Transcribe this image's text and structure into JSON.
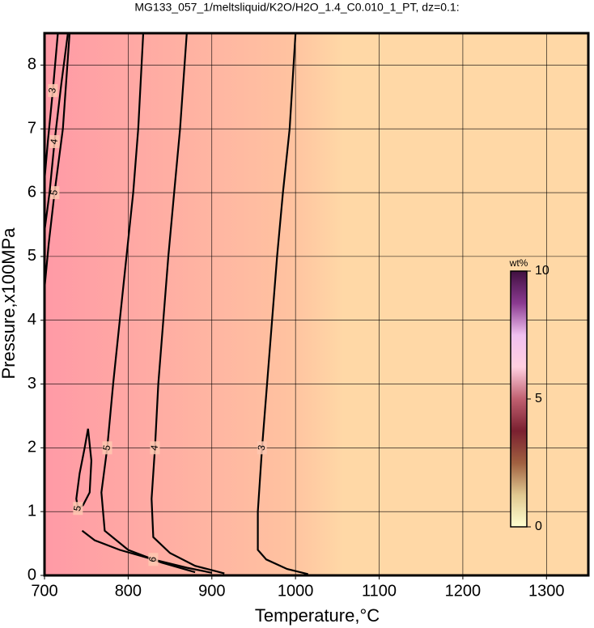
{
  "chart_data": {
    "type": "contour",
    "title": "MG133_057_1/meltsliquid/K2O/H2O_1.4_C0.010_1_PT, dz=0.1:",
    "x_label": "Temperature,°C",
    "y_label": "Pressure,x100MPa",
    "xlim": [
      700,
      1350
    ],
    "ylim": [
      0,
      8.5
    ],
    "xticks": [
      700,
      800,
      900,
      1000,
      1100,
      1200,
      1300
    ],
    "yticks": [
      0,
      1,
      2,
      3,
      4,
      5,
      6,
      7,
      8
    ],
    "grid": true,
    "contours": [
      {
        "level": 3,
        "x": [
          1000,
          993,
          985,
          978,
          972,
          966,
          960,
          955,
          955,
          965,
          990,
          1015
        ],
        "y": [
          8.5,
          7,
          6,
          5,
          4,
          3,
          2,
          1,
          0.4,
          0.25,
          0.1,
          0.02
        ]
      },
      {
        "level": 4,
        "x": [
          870,
          862,
          855,
          848,
          842,
          836,
          832,
          828,
          830,
          850,
          880,
          915
        ],
        "y": [
          8.5,
          7,
          6,
          5,
          4,
          3,
          2,
          1.2,
          0.6,
          0.35,
          0.15,
          0.03
        ]
      },
      {
        "level": 5,
        "x": [
          818,
          812,
          806,
          798,
          790,
          782,
          775,
          768,
          772,
          800,
          840,
          880
        ],
        "y": [
          8.5,
          7,
          6,
          5,
          4,
          3,
          2,
          1.3,
          0.7,
          0.4,
          0.2,
          0.05
        ]
      },
      {
        "level": 5,
        "x": [
          752,
          748,
          742,
          738,
          740,
          746,
          754,
          756,
          752
        ],
        "y": [
          2.3,
          2.0,
          1.6,
          1.2,
          1.05,
          1.1,
          1.3,
          1.8,
          2.3
        ]
      },
      {
        "level": 5,
        "x": [
          700,
          705,
          712,
          722,
          730
        ],
        "y": [
          4.5,
          5.2,
          6,
          7,
          8.5
        ]
      },
      {
        "level": 4,
        "x": [
          700,
          706,
          712,
          720,
          728
        ],
        "y": [
          5.4,
          6.0,
          6.8,
          7.7,
          8.5
        ]
      },
      {
        "level": 3,
        "x": [
          700,
          704,
          710,
          716
        ],
        "y": [
          6.2,
          6.8,
          7.6,
          8.5
        ]
      },
      {
        "level": 6,
        "x": [
          745,
          760,
          790,
          830,
          870,
          900
        ],
        "y": [
          0.7,
          0.55,
          0.4,
          0.25,
          0.12,
          0.04
        ]
      }
    ],
    "colorbar": {
      "label": "wt%",
      "lim": [
        0,
        10
      ],
      "ticks": [
        0,
        5,
        10
      ],
      "colors": [
        "#ffffd0",
        "#e0c890",
        "#a06040",
        "#7a2030",
        "#c06070",
        "#ffd0e0",
        "#f0c0f0",
        "#8a3a90",
        "#401040"
      ]
    },
    "background_colors": [
      "#ff9aa6",
      "#ffc2a0",
      "#ffd8a6"
    ]
  }
}
